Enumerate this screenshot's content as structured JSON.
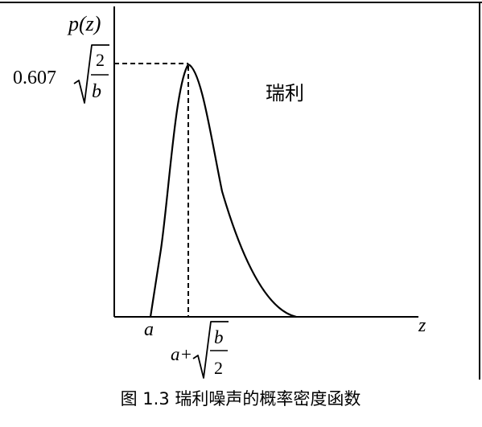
{
  "diagram": {
    "y_axis_label": "p(z)",
    "x_axis_label": "z",
    "peak_label_coef": "0.607",
    "peak_label_num": "2",
    "peak_label_den": "b",
    "curve_label": "瑞利",
    "x_origin_label": "a",
    "x_mode_prefix": "a+",
    "x_mode_num": "b",
    "x_mode_den": "2",
    "caption": "图 1.3  瑞利噪声的概率密度函数"
  },
  "colors": {
    "ink": "#000000",
    "background": "#ffffff"
  }
}
